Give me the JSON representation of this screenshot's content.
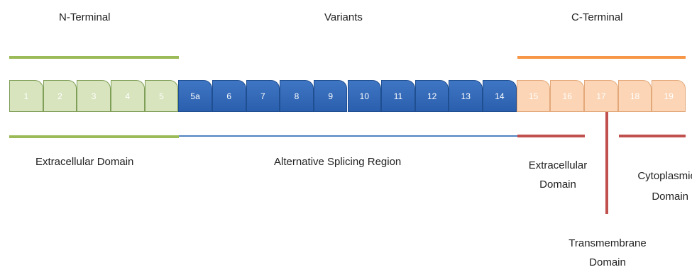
{
  "header": {
    "n_terminal": "N-Terminal",
    "variants": "Variants",
    "c_terminal": "C-Terminal"
  },
  "exons": [
    {
      "label": "1",
      "group": "green"
    },
    {
      "label": "2",
      "group": "green"
    },
    {
      "label": "3",
      "group": "green"
    },
    {
      "label": "4",
      "group": "green"
    },
    {
      "label": "5",
      "group": "green"
    },
    {
      "label": "5a",
      "group": "blue"
    },
    {
      "label": "6",
      "group": "blue"
    },
    {
      "label": "7",
      "group": "blue"
    },
    {
      "label": "8",
      "group": "blue"
    },
    {
      "label": "9",
      "group": "blue"
    },
    {
      "label": "10",
      "group": "blue"
    },
    {
      "label": "11",
      "group": "blue"
    },
    {
      "label": "12",
      "group": "blue"
    },
    {
      "label": "13",
      "group": "blue"
    },
    {
      "label": "14",
      "group": "blue"
    },
    {
      "label": "15",
      "group": "peach"
    },
    {
      "label": "16",
      "group": "peach"
    },
    {
      "label": "17",
      "group": "peach"
    },
    {
      "label": "18",
      "group": "peach"
    },
    {
      "label": "19",
      "group": "peach"
    }
  ],
  "regions": {
    "extracellular_n": "Extracellular Domain",
    "alt_splicing": "Alternative Splicing Region",
    "extracellular_c_line1": "Extracellular",
    "extracellular_c_line2": "Domain",
    "cytoplasmic_line1": "Cytoplasmic",
    "cytoplasmic_line2": "Domain",
    "transmembrane_line1": "Transmembrane",
    "transmembrane_line2": "Domain"
  },
  "colors": {
    "green_line": "#9bbb59",
    "orange_line": "#f79646",
    "blue_line": "#4f81bd",
    "red_line": "#c0504d"
  }
}
